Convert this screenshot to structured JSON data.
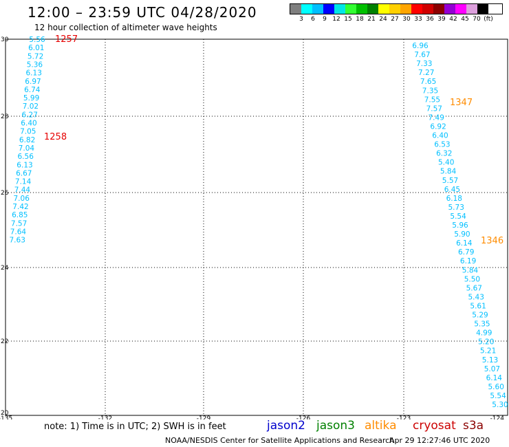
{
  "header": {
    "title": "12:00 – 23:59 UTC 04/28/2020",
    "subtitle": "12 hour collection of altimeter wave heights"
  },
  "legend": {
    "colors": [
      "#7f7f7f",
      "#00ffff",
      "#00bfff",
      "#0000ff",
      "#00e6e6",
      "#33ff33",
      "#00c000",
      "#008000",
      "#ffff00",
      "#ffd000",
      "#ffa500",
      "#ff0000",
      "#d00000",
      "#8b0000",
      "#9400d3",
      "#ff00ff",
      "#dda0dd",
      "#000000"
    ],
    "labels": [
      "3",
      "6",
      "9",
      "12",
      "15",
      "18",
      "21",
      "24",
      "27",
      "30",
      "33",
      "36",
      "39",
      "42",
      "45",
      "70",
      "(ft)"
    ]
  },
  "map": {
    "lon_range": [
      -135,
      -124
    ],
    "lat_range": [
      20,
      30
    ],
    "lon_ticks": [
      "-135",
      "-132",
      "-129",
      "-126",
      "-123",
      "-124"
    ],
    "lat_ticks": [
      "30",
      "28",
      "26",
      "24",
      "22",
      "20"
    ],
    "track_color": "#00bfff",
    "track_west": [
      "5.56",
      "6.01",
      "5.72",
      "5.36",
      "6.13",
      "6.97",
      "6.74",
      "5.99",
      "7.02",
      "6.27",
      "6.40",
      "7.05",
      "6.82",
      "7.04",
      "6.56",
      "6.13",
      "6.67",
      "7.14",
      "7.44",
      "7.06",
      "7.42",
      "6.85",
      "7.57",
      "7.64",
      "7.63"
    ],
    "track_east": [
      "6.96",
      "7.67",
      "7.33",
      "7.27",
      "7.65",
      "7.35",
      "7.55",
      "7.57",
      "7.49",
      "6.92",
      "6.40",
      "6.53",
      "6.32",
      "5.40",
      "5.84",
      "5.57",
      "6.45",
      "6.18",
      "5.73",
      "5.54",
      "5.96",
      "5.90",
      "6.14",
      "6.79",
      "6.19",
      "5.84",
      "5.50",
      "5.67",
      "5.43",
      "5.61",
      "5.29",
      "5.35",
      "4.99",
      "5.20",
      "5.21",
      "5.13",
      "5.07",
      "6.14",
      "5.60",
      "5.54",
      "5.30"
    ],
    "time_labels": [
      {
        "text": "1257",
        "color": "#e60000"
      },
      {
        "text": "1258",
        "color": "#e60000"
      },
      {
        "text": "1347",
        "color": "#ff8c00"
      },
      {
        "text": "1346",
        "color": "#ff8c00"
      }
    ]
  },
  "footer": {
    "note": "note:  1) Time is in UTC;  2) SWH is in feet",
    "satellites": [
      {
        "name": "jason2",
        "color": "#0000cc"
      },
      {
        "name": "jason3",
        "color": "#008000"
      },
      {
        "name": "altika",
        "color": "#ff8c00"
      },
      {
        "name": "cryosat",
        "color": "#cc0000"
      },
      {
        "name": "s3a",
        "color": "#8b0000"
      }
    ],
    "credit": "NOAA/NESDIS Center for Satellite Applications and Research",
    "timestamp": "Apr 29 12:27:46 UTC 2020"
  }
}
